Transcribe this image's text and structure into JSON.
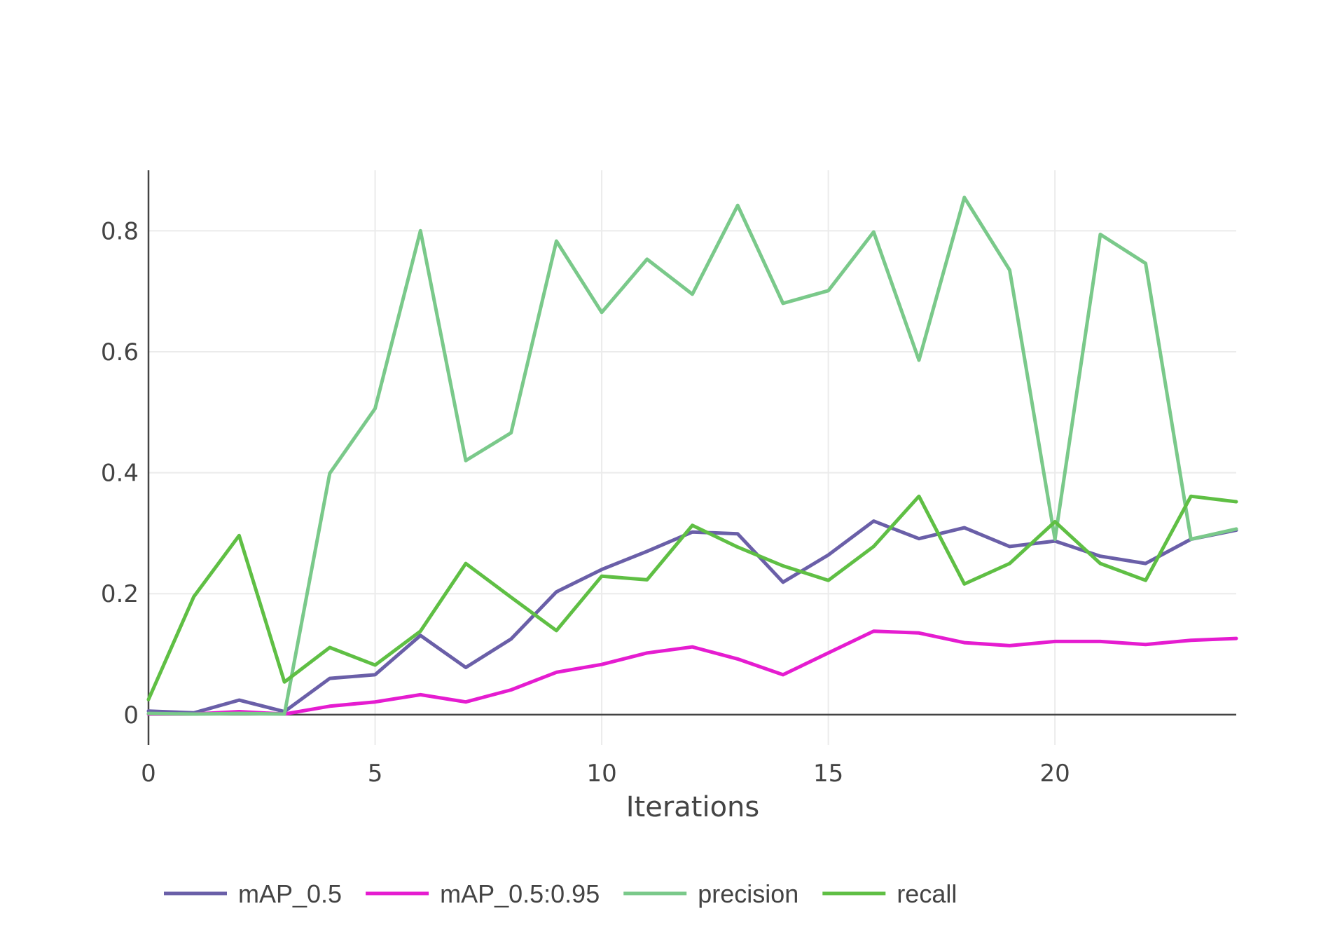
{
  "chart_data": {
    "type": "line",
    "title": "",
    "xlabel": "Iterations",
    "ylabel": "",
    "xlim": [
      0,
      24
    ],
    "ylim": [
      -0.05,
      0.9
    ],
    "x_ticks": [
      0,
      5,
      10,
      15,
      20
    ],
    "x_tick_labels": [
      "0",
      "5",
      "10",
      "15",
      "20"
    ],
    "y_ticks": [
      0,
      0.2,
      0.4,
      0.6,
      0.8
    ],
    "y_tick_labels": [
      "0",
      "0.2",
      "0.4",
      "0.6",
      "0.8"
    ],
    "grid": true,
    "legend_position": "bottom",
    "x": [
      0,
      1,
      2,
      3,
      4,
      5,
      6,
      7,
      8,
      9,
      10,
      11,
      12,
      13,
      14,
      15,
      16,
      17,
      18,
      19,
      20,
      21,
      22,
      23,
      24
    ],
    "series": [
      {
        "name": "mAP_0.5",
        "color": "#6a5fa8",
        "values": [
          0.006,
          0.003,
          0.024,
          0.005,
          0.06,
          0.066,
          0.131,
          0.078,
          0.125,
          0.203,
          0.24,
          0.27,
          0.302,
          0.299,
          0.219,
          0.264,
          0.32,
          0.291,
          0.309,
          0.278,
          0.287,
          0.262,
          0.25,
          0.29,
          0.305
        ]
      },
      {
        "name": "mAP_0.5:0.95",
        "color": "#e51cd0",
        "values": [
          0.001,
          0.001,
          0.005,
          0.001,
          0.014,
          0.021,
          0.033,
          0.021,
          0.041,
          0.07,
          0.083,
          0.102,
          0.112,
          0.092,
          0.066,
          0.102,
          0.138,
          0.135,
          0.119,
          0.114,
          0.121,
          0.121,
          0.116,
          0.123,
          0.126
        ]
      },
      {
        "name": "precision",
        "color": "#7ac98a",
        "values": [
          0.002,
          0.001,
          0.002,
          0.001,
          0.399,
          0.506,
          0.8,
          0.42,
          0.466,
          0.783,
          0.665,
          0.753,
          0.695,
          0.842,
          0.68,
          0.701,
          0.798,
          0.586,
          0.855,
          0.735,
          0.29,
          0.794,
          0.746,
          0.29,
          0.307
        ]
      },
      {
        "name": "recall",
        "color": "#5fbf44",
        "values": [
          0.025,
          0.195,
          0.296,
          0.054,
          0.111,
          0.082,
          0.138,
          0.25,
          0.194,
          0.139,
          0.229,
          0.223,
          0.313,
          0.277,
          0.246,
          0.222,
          0.278,
          0.361,
          0.216,
          0.25,
          0.319,
          0.25,
          0.222,
          0.361,
          0.352
        ]
      }
    ]
  }
}
